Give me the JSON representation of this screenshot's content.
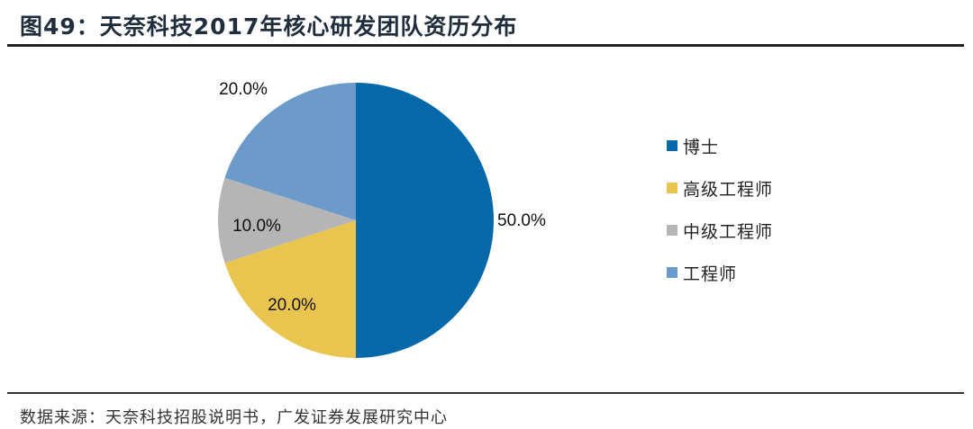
{
  "header": {
    "title": "图49：天奈科技2017年核心研发团队资历分布"
  },
  "footer": {
    "source": "数据来源：天奈科技招股说明书，广发证券发展研究中心"
  },
  "chart_data": {
    "type": "pie",
    "title": "天奈科技2017年核心研发团队资历分布",
    "categories": [
      "博士",
      "高级工程师",
      "中级工程师",
      "工程师"
    ],
    "values": [
      50.0,
      20.0,
      10.0,
      20.0
    ],
    "labels": [
      "50.0%",
      "20.0%",
      "10.0%",
      "20.0%"
    ],
    "colors": [
      "#0568a8",
      "#e9c54f",
      "#b5b5b5",
      "#6b9acb"
    ],
    "start_angle": "12 o'clock, clockwise",
    "legend_position": "right"
  },
  "legend": {
    "items": [
      {
        "label": "博士",
        "color": "#0568a8"
      },
      {
        "label": "高级工程师",
        "color": "#e9c54f"
      },
      {
        "label": "中级工程师",
        "color": "#b5b5b5"
      },
      {
        "label": "工程师",
        "color": "#6b9acb"
      }
    ]
  }
}
